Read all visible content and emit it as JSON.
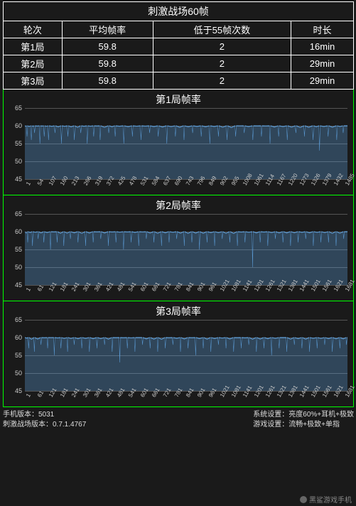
{
  "table": {
    "title": "刺激战场60帧",
    "headers": [
      "轮次",
      "平均帧率",
      "低于55帧次数",
      "时长"
    ],
    "rows": [
      [
        "第1局",
        "59.8",
        "2",
        "16min"
      ],
      [
        "第2局",
        "59.8",
        "2",
        "29min"
      ],
      [
        "第3局",
        "59.8",
        "2",
        "29min"
      ]
    ]
  },
  "charts_common": {
    "ylim": [
      45,
      65
    ],
    "yticks": [
      45,
      50,
      55,
      60,
      65
    ],
    "series_color": "#5b9bd5",
    "grid_color": "#555555",
    "background": "#1a1a1a",
    "label_color": "#cccccc",
    "label_fontsize": 9
  },
  "charts": [
    {
      "title": "第1局帧率",
      "x_max": 1500,
      "x_step": 53,
      "x_first": 1,
      "baseline_fps": 60,
      "dips": [
        {
          "x": 10,
          "v": 57
        },
        {
          "x": 30,
          "v": 56
        },
        {
          "x": 45,
          "v": 58
        },
        {
          "x": 70,
          "v": 55
        },
        {
          "x": 90,
          "v": 57
        },
        {
          "x": 110,
          "v": 56
        },
        {
          "x": 140,
          "v": 58
        },
        {
          "x": 170,
          "v": 55
        },
        {
          "x": 200,
          "v": 57
        },
        {
          "x": 230,
          "v": 56
        },
        {
          "x": 260,
          "v": 58
        },
        {
          "x": 290,
          "v": 55
        },
        {
          "x": 320,
          "v": 57
        },
        {
          "x": 350,
          "v": 56
        },
        {
          "x": 390,
          "v": 58
        },
        {
          "x": 420,
          "v": 57
        },
        {
          "x": 460,
          "v": 55
        },
        {
          "x": 500,
          "v": 57
        },
        {
          "x": 540,
          "v": 56
        },
        {
          "x": 580,
          "v": 58
        },
        {
          "x": 620,
          "v": 57
        },
        {
          "x": 660,
          "v": 55
        },
        {
          "x": 700,
          "v": 57
        },
        {
          "x": 740,
          "v": 56
        },
        {
          "x": 780,
          "v": 58
        },
        {
          "x": 820,
          "v": 57
        },
        {
          "x": 860,
          "v": 55
        },
        {
          "x": 900,
          "v": 57
        },
        {
          "x": 940,
          "v": 56
        },
        {
          "x": 980,
          "v": 57
        },
        {
          "x": 1020,
          "v": 58
        },
        {
          "x": 1060,
          "v": 56
        },
        {
          "x": 1100,
          "v": 57
        },
        {
          "x": 1140,
          "v": 55
        },
        {
          "x": 1180,
          "v": 57
        },
        {
          "x": 1220,
          "v": 56
        },
        {
          "x": 1260,
          "v": 58
        },
        {
          "x": 1300,
          "v": 57
        },
        {
          "x": 1340,
          "v": 56
        },
        {
          "x": 1370,
          "v": 53
        },
        {
          "x": 1410,
          "v": 57
        },
        {
          "x": 1450,
          "v": 56
        },
        {
          "x": 1480,
          "v": 58
        }
      ]
    },
    {
      "title": "第2局帧率",
      "x_max": 1700,
      "x_step": 60,
      "x_first": 1,
      "baseline_fps": 60,
      "dips": [
        {
          "x": 15,
          "v": 57
        },
        {
          "x": 40,
          "v": 56
        },
        {
          "x": 70,
          "v": 58
        },
        {
          "x": 100,
          "v": 57
        },
        {
          "x": 135,
          "v": 55
        },
        {
          "x": 170,
          "v": 57
        },
        {
          "x": 205,
          "v": 56
        },
        {
          "x": 240,
          "v": 58
        },
        {
          "x": 280,
          "v": 57
        },
        {
          "x": 320,
          "v": 56
        },
        {
          "x": 360,
          "v": 57
        },
        {
          "x": 400,
          "v": 58
        },
        {
          "x": 440,
          "v": 56
        },
        {
          "x": 480,
          "v": 57
        },
        {
          "x": 520,
          "v": 55
        },
        {
          "x": 560,
          "v": 57
        },
        {
          "x": 600,
          "v": 56
        },
        {
          "x": 640,
          "v": 58
        },
        {
          "x": 680,
          "v": 57
        },
        {
          "x": 720,
          "v": 56
        },
        {
          "x": 760,
          "v": 57
        },
        {
          "x": 800,
          "v": 58
        },
        {
          "x": 840,
          "v": 56
        },
        {
          "x": 880,
          "v": 57
        },
        {
          "x": 920,
          "v": 55
        },
        {
          "x": 960,
          "v": 57
        },
        {
          "x": 1000,
          "v": 56
        },
        {
          "x": 1040,
          "v": 58
        },
        {
          "x": 1080,
          "v": 57
        },
        {
          "x": 1120,
          "v": 56
        },
        {
          "x": 1160,
          "v": 57
        },
        {
          "x": 1200,
          "v": 50
        },
        {
          "x": 1240,
          "v": 57
        },
        {
          "x": 1280,
          "v": 56
        },
        {
          "x": 1320,
          "v": 58
        },
        {
          "x": 1360,
          "v": 57
        },
        {
          "x": 1400,
          "v": 56
        },
        {
          "x": 1440,
          "v": 57
        },
        {
          "x": 1480,
          "v": 58
        },
        {
          "x": 1520,
          "v": 56
        },
        {
          "x": 1560,
          "v": 57
        },
        {
          "x": 1600,
          "v": 57
        },
        {
          "x": 1640,
          "v": 56
        },
        {
          "x": 1680,
          "v": 58
        }
      ]
    },
    {
      "title": "第3局帧率",
      "x_max": 1700,
      "x_step": 60,
      "x_first": 1,
      "baseline_fps": 60,
      "dips": [
        {
          "x": 20,
          "v": 57
        },
        {
          "x": 50,
          "v": 56
        },
        {
          "x": 85,
          "v": 58
        },
        {
          "x": 120,
          "v": 57
        },
        {
          "x": 155,
          "v": 55
        },
        {
          "x": 190,
          "v": 57
        },
        {
          "x": 225,
          "v": 56
        },
        {
          "x": 260,
          "v": 58
        },
        {
          "x": 300,
          "v": 57
        },
        {
          "x": 340,
          "v": 56
        },
        {
          "x": 380,
          "v": 57
        },
        {
          "x": 420,
          "v": 58
        },
        {
          "x": 460,
          "v": 56
        },
        {
          "x": 500,
          "v": 53
        },
        {
          "x": 540,
          "v": 57
        },
        {
          "x": 580,
          "v": 56
        },
        {
          "x": 620,
          "v": 58
        },
        {
          "x": 660,
          "v": 57
        },
        {
          "x": 700,
          "v": 56
        },
        {
          "x": 740,
          "v": 57
        },
        {
          "x": 780,
          "v": 58
        },
        {
          "x": 820,
          "v": 56
        },
        {
          "x": 860,
          "v": 57
        },
        {
          "x": 900,
          "v": 55
        },
        {
          "x": 940,
          "v": 57
        },
        {
          "x": 980,
          "v": 56
        },
        {
          "x": 1020,
          "v": 58
        },
        {
          "x": 1060,
          "v": 57
        },
        {
          "x": 1100,
          "v": 56
        },
        {
          "x": 1140,
          "v": 57
        },
        {
          "x": 1180,
          "v": 58
        },
        {
          "x": 1220,
          "v": 56
        },
        {
          "x": 1260,
          "v": 57
        },
        {
          "x": 1300,
          "v": 55
        },
        {
          "x": 1340,
          "v": 57
        },
        {
          "x": 1380,
          "v": 56
        },
        {
          "x": 1420,
          "v": 58
        },
        {
          "x": 1460,
          "v": 57
        },
        {
          "x": 1500,
          "v": 56
        },
        {
          "x": 1540,
          "v": 57
        },
        {
          "x": 1580,
          "v": 58
        },
        {
          "x": 1620,
          "v": 56
        },
        {
          "x": 1660,
          "v": 57
        },
        {
          "x": 1695,
          "v": 58
        }
      ]
    }
  ],
  "footer": {
    "left1": "手机版本：5031",
    "left2": "刺激战场版本：0.7.1.4767",
    "right1": "系统设置：亮度60%+耳机+极致",
    "right2": "游戏设置：流畅+极致+单指"
  },
  "watermark": "黑鲨游戏手机"
}
